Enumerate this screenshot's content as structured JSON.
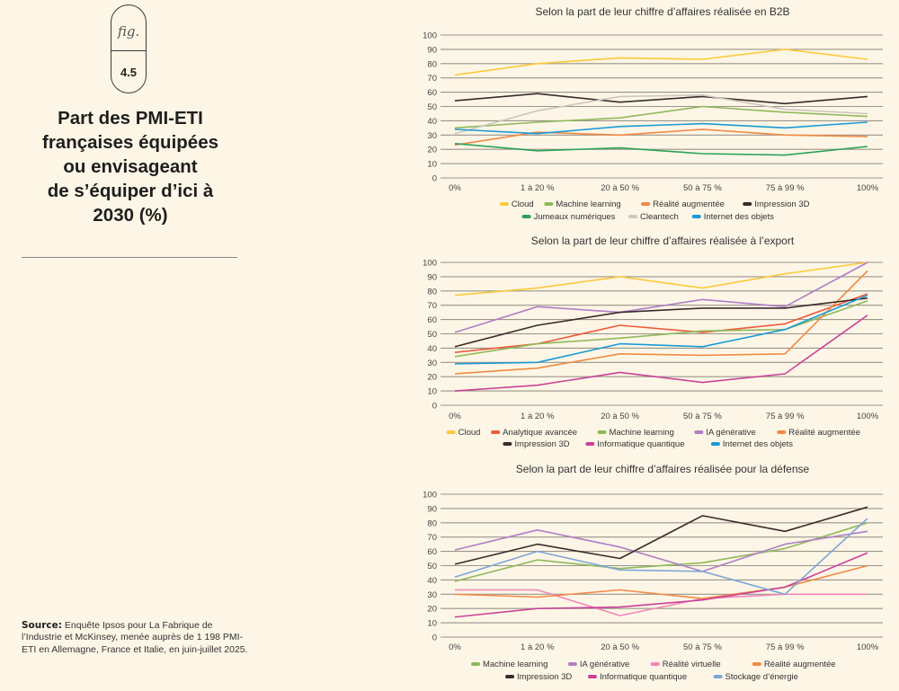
{
  "figure": {
    "badge_top": "fig.",
    "badge_number": "4.5",
    "title": "Part des PMI-ETI\nfrançaises équipées\nou envisageant\nde s’équiper d’ici à\n2030 (%)",
    "source_label": "Source:",
    "source_text": " Enquête Ipsos pour La Fabrique de l’Industrie et McKinsey, menée auprès de 1 198 PMI-ETI en Allemagne, France et Italie, en juin-juillet 2025."
  },
  "colors": {
    "Cloud": "#fdc93c",
    "Machine learning": "#8fb95a",
    "Réalité augmentée": "#f28a45",
    "Impression 3D": "#3b2b2b",
    "Jumeaux numériques": "#2aa257",
    "Cleantech": "#cdc6c0",
    "Internet des objets": "#1a9ad6",
    "Analytique avancée": "#ee5a3c",
    "IA générative": "#b07fc7",
    "Informatique quantique": "#c9439a",
    "Réalité virtuelle": "#f486b8",
    "Stockage d’énergie": "#7fa6d8"
  },
  "chart_data": [
    {
      "type": "line",
      "title": "Selon la part de leur chiffre d’affaires réalisée en B2B",
      "categories": [
        "0%",
        "1 à 20 %",
        "20 à 50 %",
        "50 à 75 %",
        "75 à 99 %",
        "100%"
      ],
      "ylim": [
        0,
        100
      ],
      "yticks": [
        0,
        10,
        20,
        30,
        40,
        50,
        60,
        70,
        80,
        90,
        100
      ],
      "grid": true,
      "legend_position": "bottom",
      "legend_rows": [
        [
          "Cloud",
          "Machine learning",
          "Réalité augmentée",
          "Impression 3D"
        ],
        [
          "Jumeaux numériques",
          "Cleantech",
          "Internet des objets"
        ]
      ],
      "series": [
        {
          "name": "Cloud",
          "values": [
            72,
            80,
            84,
            83,
            90,
            83
          ]
        },
        {
          "name": "Machine learning",
          "values": [
            35,
            39,
            42,
            50,
            46,
            43
          ]
        },
        {
          "name": "Réalité augmentée",
          "values": [
            23,
            32,
            30,
            34,
            30,
            29
          ]
        },
        {
          "name": "Impression 3D",
          "values": [
            54,
            59,
            53,
            57,
            52,
            57
          ]
        },
        {
          "name": "Jumeaux numériques",
          "values": [
            24,
            19,
            21,
            17,
            16,
            22
          ]
        },
        {
          "name": "Cleantech",
          "values": [
            31,
            47,
            57,
            58,
            48,
            45
          ]
        },
        {
          "name": "Internet des objets",
          "values": [
            34,
            31,
            36,
            38,
            35,
            39
          ]
        }
      ]
    },
    {
      "type": "line",
      "title": "Selon la part de leur chiffre d’affaires réalisée à l’export",
      "categories": [
        "0%",
        "1 à 20 %",
        "20 à 50 %",
        "50 à 75 %",
        "75 à 99 %",
        "100%"
      ],
      "ylim": [
        0,
        100
      ],
      "yticks": [
        0,
        10,
        20,
        30,
        40,
        50,
        60,
        70,
        80,
        90,
        100
      ],
      "grid": true,
      "legend_position": "bottom",
      "legend_rows": [
        [
          "Cloud",
          "Analytique avancée",
          "Machine learning",
          "IA générative",
          "Réalité augmentée"
        ],
        [
          "Impression 3D",
          "Informatique quantique",
          "Internet des objets"
        ]
      ],
      "series": [
        {
          "name": "Cloud",
          "values": [
            77,
            82,
            90,
            82,
            92,
            100
          ]
        },
        {
          "name": "Analytique avancée",
          "values": [
            37,
            43,
            56,
            51,
            57,
            78
          ]
        },
        {
          "name": "Machine learning",
          "values": [
            34,
            43,
            47,
            52,
            53,
            73
          ]
        },
        {
          "name": "IA générative",
          "values": [
            51,
            69,
            65,
            74,
            69,
            100
          ]
        },
        {
          "name": "Réalité augmentée",
          "values": [
            22,
            26,
            36,
            35,
            36,
            94
          ]
        },
        {
          "name": "Impression 3D",
          "values": [
            41,
            56,
            65,
            68,
            68,
            75
          ]
        },
        {
          "name": "Informatique quantique",
          "values": [
            10,
            14,
            23,
            16,
            22,
            63
          ]
        },
        {
          "name": "Internet des objets",
          "values": [
            29,
            30,
            43,
            41,
            53,
            77
          ]
        }
      ]
    },
    {
      "type": "line",
      "title": "Selon la part de leur chiffre d’affaires réalisée pour la défense",
      "categories": [
        "0%",
        "1 à 20 %",
        "20 à 50 %",
        "50 à 75 %",
        "75 à 99 %",
        "100%"
      ],
      "ylim": [
        0,
        100
      ],
      "yticks": [
        0,
        10,
        20,
        30,
        40,
        50,
        60,
        70,
        80,
        90,
        100
      ],
      "grid": true,
      "legend_position": "bottom",
      "legend_rows": [
        [
          "Machine learning",
          "IA générative",
          "Réalité virtuelle",
          "Réalité augmentée"
        ],
        [
          "Impression 3D",
          "Informatique quantique",
          "Stockage d’énergie"
        ]
      ],
      "series": [
        {
          "name": "Machine learning",
          "values": [
            39,
            54,
            48,
            52,
            62,
            80
          ]
        },
        {
          "name": "IA générative",
          "values": [
            61,
            75,
            63,
            46,
            65,
            74
          ]
        },
        {
          "name": "Réalité virtuelle",
          "values": [
            33,
            33,
            15,
            27,
            30,
            30
          ]
        },
        {
          "name": "Réalité augmentée",
          "values": [
            30,
            28,
            33,
            27,
            35,
            50
          ]
        },
        {
          "name": "Impression 3D",
          "values": [
            51,
            65,
            55,
            85,
            74,
            91
          ]
        },
        {
          "name": "Informatique quantique",
          "values": [
            14,
            20,
            21,
            26,
            35,
            59
          ]
        },
        {
          "name": "Stockage d’énergie",
          "values": [
            42,
            60,
            47,
            46,
            30,
            83
          ]
        }
      ]
    }
  ]
}
